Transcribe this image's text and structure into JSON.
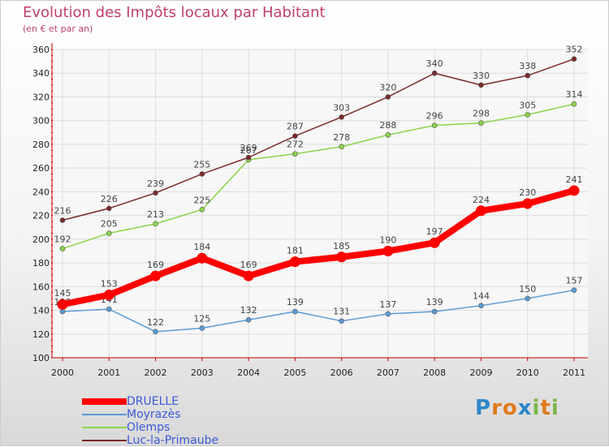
{
  "title": "Evolution des Impôts locaux par Habitant",
  "subtitle": "(en € et par an)",
  "brand": {
    "letters": [
      "P",
      "r",
      "o",
      "x",
      "i",
      "t",
      "i"
    ],
    "colors": [
      "#2f86c8",
      "#e07b1c",
      "#e07b1c",
      "#2f86c8",
      "#7ab648",
      "#e07b1c",
      "#7ab648"
    ]
  },
  "chart_data": {
    "type": "line",
    "x": [
      "2000",
      "2001",
      "2002",
      "2003",
      "2004",
      "2005",
      "2006",
      "2007",
      "2008",
      "2009",
      "2010",
      "2011"
    ],
    "ylim": [
      100,
      360
    ],
    "yticks": [
      100,
      120,
      140,
      160,
      180,
      200,
      220,
      240,
      260,
      280,
      300,
      320,
      340,
      360
    ],
    "grid": true,
    "legend_position": "bottom-left",
    "series": [
      {
        "name": "DRUELLE",
        "color": "#ff0000",
        "emphasis": true,
        "values": [
          145,
          153,
          169,
          184,
          169,
          181,
          185,
          190,
          197,
          224,
          230,
          241
        ]
      },
      {
        "name": "Moyrazès",
        "color": "#5b9bd5",
        "emphasis": false,
        "values": [
          139,
          141,
          122,
          125,
          132,
          139,
          131,
          137,
          139,
          144,
          150,
          157
        ]
      },
      {
        "name": "Olemps",
        "color": "#8cd44a",
        "emphasis": false,
        "values": [
          192,
          205,
          213,
          225,
          267,
          272,
          278,
          288,
          296,
          298,
          305,
          314
        ]
      },
      {
        "name": "Luc-la-Primaube",
        "color": "#7a2a2a",
        "emphasis": false,
        "values": [
          216,
          226,
          239,
          255,
          269,
          287,
          303,
          320,
          340,
          330,
          338,
          352
        ]
      }
    ]
  }
}
